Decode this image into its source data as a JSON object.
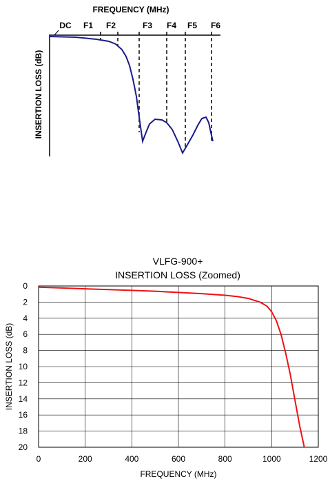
{
  "chart_data": [
    {
      "type": "line",
      "kind": "schematic",
      "xlabel": "FREQUENCY (MHz)",
      "ylabel": "INSERTION LOSS (dB)",
      "markers": [
        "DC",
        "F1",
        "F2",
        "F3",
        "F4",
        "F5",
        "F6"
      ],
      "series_color": "#1a1a8c",
      "y_axis_reversed": true,
      "grid": false
    },
    {
      "type": "line",
      "title": "VLFG-900+",
      "subtitle": "INSERTION LOSS (Zoomed)",
      "xlabel": "FREQUENCY (MHz)",
      "ylabel": "INSERTION LOSS (dB)",
      "xlim": [
        0,
        1200
      ],
      "ylim": [
        0,
        20
      ],
      "y_axis_reversed": true,
      "xticks": [
        "0",
        "200",
        "400",
        "600",
        "800",
        "1000",
        "1200"
      ],
      "yticks": [
        "0",
        "2",
        "4",
        "6",
        "8",
        "10",
        "12",
        "14",
        "16",
        "18",
        "20"
      ],
      "grid": true,
      "series_color": "#ee1111",
      "x": [
        0,
        100,
        200,
        300,
        400,
        500,
        600,
        700,
        800,
        850,
        900,
        950,
        980,
        1000,
        1020,
        1040,
        1060,
        1080,
        1100,
        1120,
        1140
      ],
      "values": [
        0.15,
        0.25,
        0.35,
        0.45,
        0.55,
        0.65,
        0.8,
        0.95,
        1.15,
        1.3,
        1.55,
        2.0,
        2.5,
        3.2,
        4.3,
        6.0,
        8.3,
        11.0,
        14.2,
        17.3,
        20.0
      ]
    }
  ]
}
